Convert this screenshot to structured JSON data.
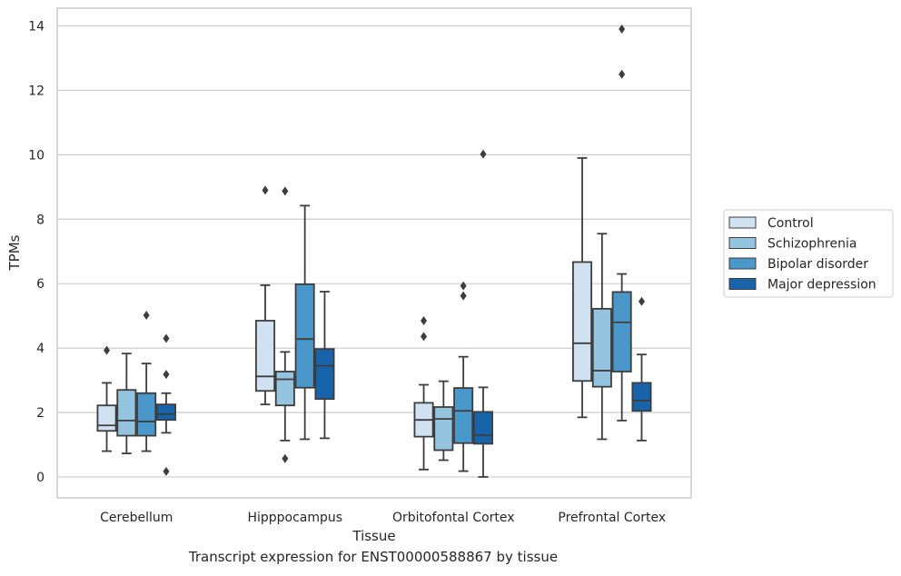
{
  "caption": "Transcript expression for ENST00000588867 by tissue",
  "chart_data": {
    "type": "box",
    "xlabel": "Tissue",
    "ylabel": "TPMs",
    "ylim": [
      -0.65,
      14.55
    ],
    "yticks": [
      0,
      2,
      4,
      6,
      8,
      10,
      12,
      14
    ],
    "grid": "horizontal",
    "legend_position": "right",
    "categories": [
      "Cerebellum",
      "Hipppocampus",
      "Orbitofontal Cortex",
      "Prefrontal Cortex"
    ],
    "series": [
      {
        "name": "Control",
        "color": "#d0e1f2",
        "boxes": [
          {
            "whislo": 0.8,
            "q1": 1.43,
            "med": 1.6,
            "q3": 2.22,
            "whishi": 2.92,
            "fliers": [
              3.93
            ]
          },
          {
            "whislo": 2.25,
            "q1": 2.67,
            "med": 3.12,
            "q3": 4.85,
            "whishi": 5.95,
            "fliers": [
              8.9
            ]
          },
          {
            "whislo": 0.23,
            "q1": 1.25,
            "med": 1.77,
            "q3": 2.3,
            "whishi": 2.86,
            "fliers": [
              4.36,
              4.85
            ]
          },
          {
            "whislo": 1.85,
            "q1": 2.98,
            "med": 4.15,
            "q3": 6.67,
            "whishi": 9.9,
            "fliers": []
          }
        ]
      },
      {
        "name": "Schizophrenia",
        "color": "#94c4df",
        "boxes": [
          {
            "whislo": 0.73,
            "q1": 1.28,
            "med": 1.75,
            "q3": 2.7,
            "whishi": 3.83,
            "fliers": []
          },
          {
            "whislo": 1.13,
            "q1": 2.22,
            "med": 3.03,
            "q3": 3.27,
            "whishi": 3.88,
            "fliers": [
              0.57,
              8.87
            ]
          },
          {
            "whislo": 0.52,
            "q1": 0.83,
            "med": 1.8,
            "q3": 2.17,
            "whishi": 2.97,
            "fliers": []
          },
          {
            "whislo": 1.17,
            "q1": 2.8,
            "med": 3.3,
            "q3": 5.22,
            "whishi": 7.55,
            "fliers": []
          }
        ]
      },
      {
        "name": "Bipolar disorder",
        "color": "#4a98c9",
        "boxes": [
          {
            "whislo": 0.8,
            "q1": 1.28,
            "med": 1.72,
            "q3": 2.6,
            "whishi": 3.52,
            "fliers": [
              5.02
            ]
          },
          {
            "whislo": 1.17,
            "q1": 2.77,
            "med": 4.28,
            "q3": 5.98,
            "whishi": 8.42,
            "fliers": []
          },
          {
            "whislo": 0.18,
            "q1": 1.05,
            "med": 2.05,
            "q3": 2.76,
            "whishi": 3.73,
            "fliers": [
              5.62,
              5.93
            ]
          },
          {
            "whislo": 1.75,
            "q1": 3.27,
            "med": 4.8,
            "q3": 5.74,
            "whishi": 6.3,
            "fliers": [
              12.5,
              13.9
            ]
          }
        ]
      },
      {
        "name": "Major depression",
        "color": "#1764ab",
        "boxes": [
          {
            "whislo": 1.37,
            "q1": 1.77,
            "med": 1.95,
            "q3": 2.25,
            "whishi": 2.6,
            "fliers": [
              0.17,
              3.18,
              4.3
            ]
          },
          {
            "whislo": 1.2,
            "q1": 2.42,
            "med": 3.45,
            "q3": 3.97,
            "whishi": 5.75,
            "fliers": []
          },
          {
            "whislo": 0.0,
            "q1": 1.03,
            "med": 1.3,
            "q3": 2.02,
            "whishi": 2.78,
            "fliers": [
              10.02
            ]
          },
          {
            "whislo": 1.13,
            "q1": 2.05,
            "med": 2.37,
            "q3": 2.92,
            "whishi": 3.8,
            "fliers": [
              5.45
            ]
          }
        ]
      }
    ]
  }
}
